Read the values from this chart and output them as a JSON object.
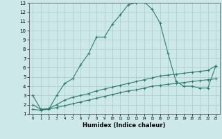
{
  "xlabel": "Humidex (Indice chaleur)",
  "bg_color": "#cce8e8",
  "line_color": "#2e7d6e",
  "grid_color": "#aacccc",
  "xlim": [
    -0.5,
    23.5
  ],
  "ylim": [
    1,
    13
  ],
  "xticks": [
    0,
    1,
    2,
    3,
    4,
    5,
    6,
    7,
    8,
    9,
    10,
    11,
    12,
    13,
    14,
    15,
    16,
    17,
    18,
    19,
    20,
    21,
    22,
    23
  ],
  "yticks": [
    1,
    2,
    3,
    4,
    5,
    6,
    7,
    8,
    9,
    10,
    11,
    12,
    13
  ],
  "curve1_x": [
    0,
    1,
    2,
    3,
    4,
    5,
    6,
    7,
    8,
    9,
    10,
    11,
    12,
    13,
    14,
    15,
    16,
    17,
    18,
    19,
    20,
    21,
    22,
    23
  ],
  "curve1_y": [
    3.0,
    1.5,
    1.5,
    3.0,
    4.3,
    4.8,
    6.3,
    7.5,
    9.3,
    9.3,
    10.7,
    11.7,
    12.8,
    13.0,
    13.1,
    12.3,
    10.8,
    7.5,
    4.5,
    4.0,
    4.0,
    3.8,
    3.8,
    6.2
  ],
  "curve2_x": [
    0,
    1,
    2,
    3,
    4,
    5,
    6,
    7,
    8,
    9,
    10,
    11,
    12,
    13,
    14,
    15,
    16,
    17,
    18,
    19,
    20,
    21,
    22,
    23
  ],
  "curve2_y": [
    2.0,
    1.5,
    1.6,
    2.0,
    2.5,
    2.8,
    3.0,
    3.2,
    3.5,
    3.7,
    3.9,
    4.1,
    4.3,
    4.5,
    4.7,
    4.9,
    5.1,
    5.2,
    5.3,
    5.4,
    5.5,
    5.6,
    5.7,
    6.2
  ],
  "curve3_x": [
    0,
    1,
    2,
    3,
    4,
    5,
    6,
    7,
    8,
    9,
    10,
    11,
    12,
    13,
    14,
    15,
    16,
    17,
    18,
    19,
    20,
    21,
    22,
    23
  ],
  "curve3_y": [
    1.5,
    1.4,
    1.5,
    1.7,
    1.9,
    2.1,
    2.3,
    2.5,
    2.7,
    2.9,
    3.1,
    3.3,
    3.5,
    3.6,
    3.8,
    4.0,
    4.1,
    4.2,
    4.3,
    4.4,
    4.5,
    4.6,
    4.7,
    4.8
  ]
}
